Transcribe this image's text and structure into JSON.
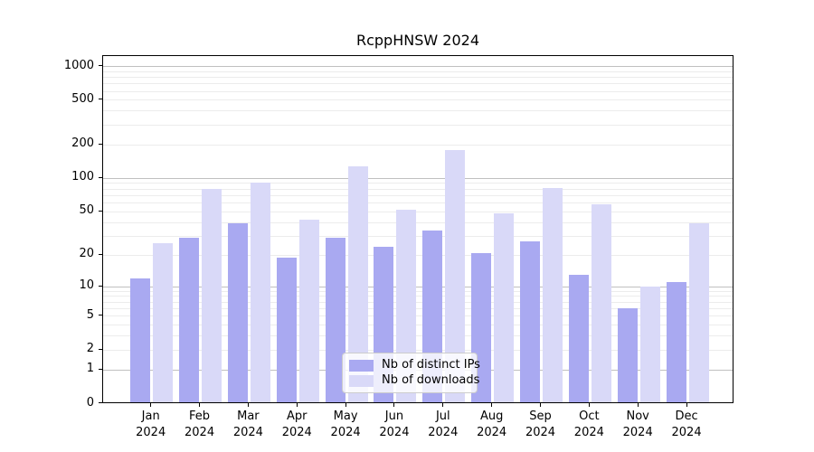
{
  "chart_data": {
    "type": "bar",
    "title": "RcppHNSW 2024",
    "year_label": "2024",
    "months": [
      "Jan",
      "Feb",
      "Mar",
      "Apr",
      "May",
      "Jun",
      "Jul",
      "Aug",
      "Sep",
      "Oct",
      "Nov",
      "Dec"
    ],
    "categories": [
      "Jan 2024",
      "Feb 2024",
      "Mar 2024",
      "Apr 2024",
      "May 2024",
      "Jun 2024",
      "Jul 2024",
      "Aug 2024",
      "Sep 2024",
      "Oct 2024",
      "Nov 2024",
      "Dec 2024"
    ],
    "series": [
      {
        "name": "Nb of distinct IPs",
        "color": "#a9a9f1",
        "values": [
          12,
          29,
          39,
          19,
          29,
          24,
          34,
          21,
          27,
          13,
          6,
          11
        ]
      },
      {
        "name": "Nb of downloads",
        "color": "#d9d9f8",
        "values": [
          26,
          80,
          91,
          42,
          128,
          52,
          180,
          48,
          82,
          58,
          10,
          39
        ]
      }
    ],
    "xlabel": "",
    "ylabel": "",
    "yscale": "log1p",
    "yticks": [
      0,
      1,
      2,
      5,
      10,
      20,
      50,
      100,
      200,
      500,
      1000
    ],
    "ylim": [
      0,
      1240
    ],
    "grid": {
      "enabled": true,
      "major_color": "#c0c0c0",
      "minor_color": "#ececec"
    },
    "legend": {
      "position": "lower center"
    },
    "axis_color": "#000000",
    "background_color": "#ffffff"
  }
}
